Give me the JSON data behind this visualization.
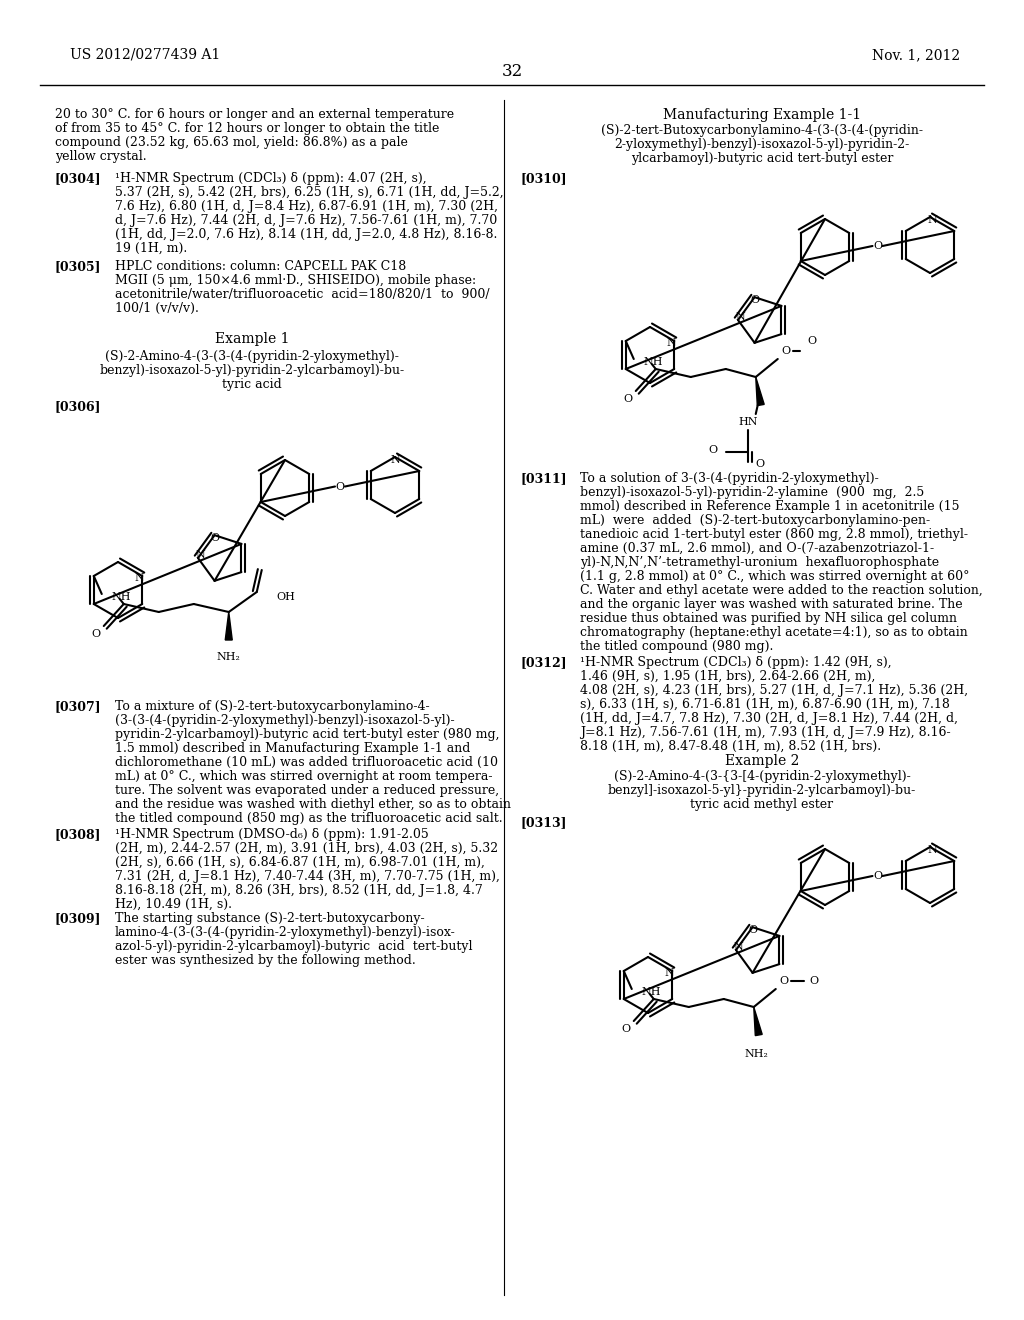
{
  "background_color": "#ffffff",
  "header_left": "US 2012/0277439 A1",
  "header_right": "Nov. 1, 2012",
  "page_number": "32"
}
